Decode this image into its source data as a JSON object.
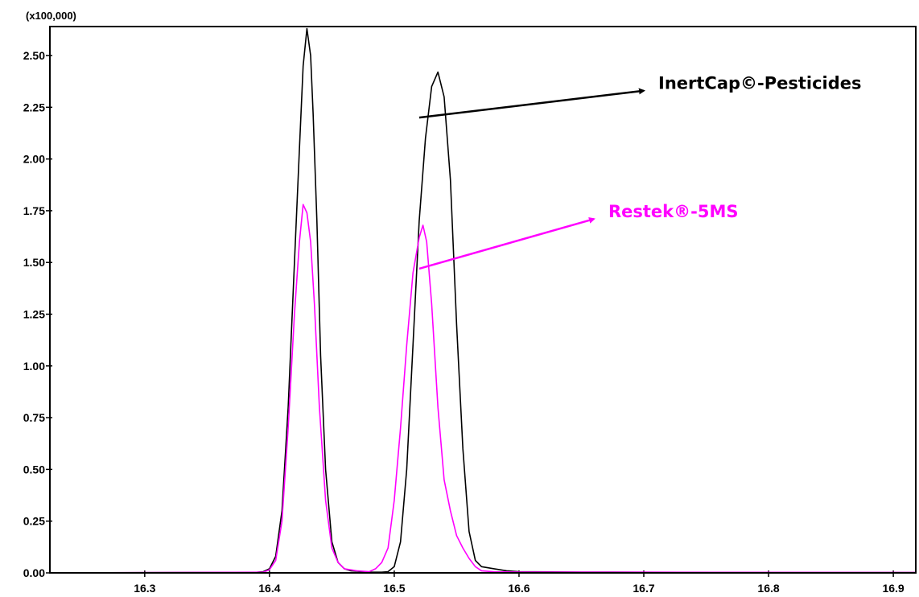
{
  "chart_data": {
    "type": "line",
    "scale_label": "(x100,000)",
    "xlim": [
      16.224,
      16.918
    ],
    "ylim": [
      0,
      2.64
    ],
    "x_ticks": [
      "16.3",
      "16.4",
      "16.5",
      "16.6",
      "16.7",
      "16.8",
      "16.9"
    ],
    "y_ticks": [
      "0.00",
      "0.25",
      "0.50",
      "0.75",
      "1.00",
      "1.25",
      "1.50",
      "1.75",
      "2.00",
      "2.25",
      "2.50"
    ],
    "series": [
      {
        "name": "InertCap©-Pesticides",
        "color": "#000000",
        "points": [
          [
            16.224,
            0
          ],
          [
            16.39,
            0.003
          ],
          [
            16.395,
            0.006
          ],
          [
            16.4,
            0.02
          ],
          [
            16.405,
            0.08
          ],
          [
            16.41,
            0.3
          ],
          [
            16.415,
            0.8
          ],
          [
            16.42,
            1.5
          ],
          [
            16.424,
            2.05
          ],
          [
            16.427,
            2.45
          ],
          [
            16.43,
            2.63
          ],
          [
            16.433,
            2.5
          ],
          [
            16.435,
            2.22
          ],
          [
            16.438,
            1.7
          ],
          [
            16.441,
            1.05
          ],
          [
            16.445,
            0.5
          ],
          [
            16.45,
            0.15
          ],
          [
            16.455,
            0.05
          ],
          [
            16.46,
            0.02
          ],
          [
            16.465,
            0.01
          ],
          [
            16.47,
            0.008
          ],
          [
            16.48,
            0.003
          ],
          [
            16.49,
            0.003
          ],
          [
            16.495,
            0.006
          ],
          [
            16.5,
            0.03
          ],
          [
            16.505,
            0.15
          ],
          [
            16.51,
            0.5
          ],
          [
            16.515,
            1.1
          ],
          [
            16.52,
            1.7
          ],
          [
            16.525,
            2.1
          ],
          [
            16.53,
            2.35
          ],
          [
            16.535,
            2.42
          ],
          [
            16.54,
            2.3
          ],
          [
            16.545,
            1.9
          ],
          [
            16.55,
            1.2
          ],
          [
            16.555,
            0.6
          ],
          [
            16.56,
            0.2
          ],
          [
            16.565,
            0.06
          ],
          [
            16.57,
            0.03
          ],
          [
            16.58,
            0.02
          ],
          [
            16.59,
            0.01
          ],
          [
            16.6,
            0.006
          ],
          [
            16.65,
            0.004
          ],
          [
            16.7,
            0.003
          ],
          [
            16.8,
            0.002
          ],
          [
            16.918,
            0.002
          ]
        ]
      },
      {
        "name": "Restek®-5MS",
        "color": "#ff00ff",
        "points": [
          [
            16.224,
            0
          ],
          [
            16.395,
            0.003
          ],
          [
            16.4,
            0.015
          ],
          [
            16.405,
            0.06
          ],
          [
            16.41,
            0.25
          ],
          [
            16.415,
            0.7
          ],
          [
            16.42,
            1.25
          ],
          [
            16.424,
            1.6
          ],
          [
            16.427,
            1.78
          ],
          [
            16.43,
            1.74
          ],
          [
            16.433,
            1.6
          ],
          [
            16.436,
            1.3
          ],
          [
            16.44,
            0.8
          ],
          [
            16.445,
            0.35
          ],
          [
            16.45,
            0.12
          ],
          [
            16.455,
            0.05
          ],
          [
            16.46,
            0.02
          ],
          [
            16.47,
            0.01
          ],
          [
            16.48,
            0.006
          ],
          [
            16.485,
            0.02
          ],
          [
            16.49,
            0.05
          ],
          [
            16.495,
            0.12
          ],
          [
            16.5,
            0.35
          ],
          [
            16.505,
            0.7
          ],
          [
            16.51,
            1.1
          ],
          [
            16.515,
            1.45
          ],
          [
            16.52,
            1.62
          ],
          [
            16.523,
            1.68
          ],
          [
            16.526,
            1.6
          ],
          [
            16.53,
            1.3
          ],
          [
            16.535,
            0.8
          ],
          [
            16.54,
            0.45
          ],
          [
            16.545,
            0.3
          ],
          [
            16.55,
            0.18
          ],
          [
            16.555,
            0.12
          ],
          [
            16.56,
            0.07
          ],
          [
            16.565,
            0.03
          ],
          [
            16.57,
            0.01
          ],
          [
            16.58,
            0.005
          ],
          [
            16.6,
            0.004
          ],
          [
            16.7,
            0.003
          ],
          [
            16.918,
            0.002
          ]
        ]
      }
    ],
    "annotations": [
      {
        "text": "InertCap©-Pesticides",
        "color": "#000000",
        "arrow_from": [
          16.52,
          2.2
        ],
        "arrow_to": [
          16.7,
          2.33
        ]
      },
      {
        "text": "Restek®-5MS",
        "color": "#ff00ff",
        "arrow_from": [
          16.52,
          1.47
        ],
        "arrow_to": [
          16.66,
          1.71
        ]
      }
    ]
  }
}
